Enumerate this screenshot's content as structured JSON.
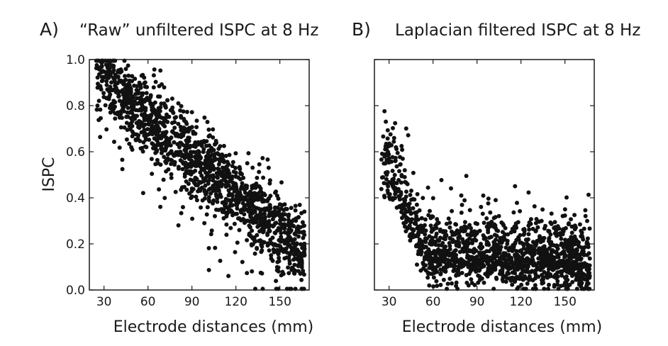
{
  "chart_data": [
    {
      "type": "scatter",
      "panel_letter": "A)",
      "title": "“Raw” unfiltered ISPC at 8 Hz",
      "xlabel": "Electrode distances (mm)",
      "ylabel": "ISPC",
      "xlim": [
        20,
        170
      ],
      "ylim": [
        0,
        1
      ],
      "xticks": [
        30,
        60,
        90,
        120,
        150
      ],
      "yticks": [
        0,
        0.2,
        0.4,
        0.6,
        0.8,
        1.0
      ],
      "ytick_labels": [
        "0.0",
        "0.2",
        "0.4",
        "0.6",
        "0.8",
        "1.0"
      ],
      "marker_color": "#111111",
      "point_count": 1500,
      "trend": "ISPC falls roughly linearly from about 0.88 at 25 mm to about 0.12 at 167 mm, spread about ±0.1",
      "x_range_of_points": [
        25,
        167
      ]
    },
    {
      "type": "scatter",
      "panel_letter": "B)",
      "title": "Laplacian filtered ISPC at 8 Hz",
      "xlabel": "Electrode distances (mm)",
      "ylabel": "",
      "xlim": [
        20,
        170
      ],
      "ylim": [
        0,
        1
      ],
      "xticks": [
        30,
        60,
        90,
        120,
        150
      ],
      "yticks": [
        0,
        0.2,
        0.4,
        0.6,
        0.8,
        1.0
      ],
      "ytick_labels": [],
      "marker_color": "#111111",
      "point_count": 1500,
      "trend": "ISPC about 0.6 at 25 mm, drops steeply to about 0.15 by 55 mm, then stays flat near 0.1–0.15 out to 167 mm",
      "x_range_of_points": [
        25,
        167
      ]
    }
  ]
}
